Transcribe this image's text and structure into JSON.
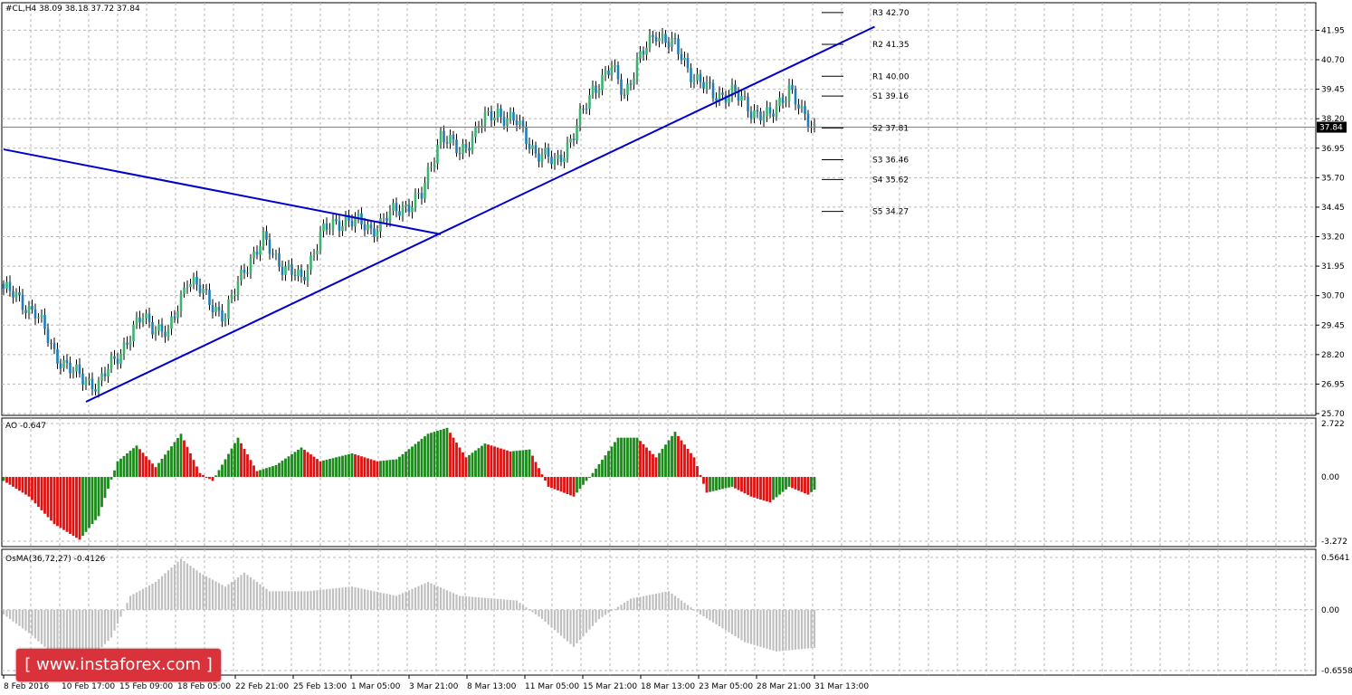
{
  "colors": {
    "up_candle": "#3cb371",
    "down_candle": "#1e7fb8",
    "trendline": "#0000cc",
    "ao_up": "#1a8a1a",
    "ao_down": "#e01010",
    "osma": "#c0c0c0",
    "grid": "#b8b8b8"
  },
  "watermark": {
    "text": "[ www.instaforex.com ]"
  },
  "chart_data": [
    {
      "type": "candlestick",
      "title": "#CL,H4  38.09 38.18 37.72 37.84",
      "current_price": "37.84",
      "ylim": [
        25.7,
        42.58
      ],
      "y_ticks": [
        "41.95",
        "40.70",
        "39.45",
        "38.20",
        "36.95",
        "35.70",
        "34.45",
        "33.20",
        "31.95",
        "30.70",
        "29.45",
        "28.20",
        "26.95",
        "25.70"
      ],
      "x_ticks": [
        "8 Feb 2016",
        "10 Feb 17:00",
        "15 Feb 09:00",
        "18 Feb 05:00",
        "22 Feb 21:00",
        "25 Feb 13:00",
        "1 Mar 05:00",
        "3 Mar 21:00",
        "8 Mar 13:00",
        "11 Mar 05:00",
        "15 Mar 21:00",
        "18 Mar 13:00",
        "23 Mar 05:00",
        "28 Mar 21:00",
        "31 Mar 13:00"
      ],
      "close_path": [
        [
          0,
          31.0
        ],
        [
          10,
          30.0
        ],
        [
          16,
          28.3
        ],
        [
          22,
          27.4
        ],
        [
          30,
          26.9
        ],
        [
          36,
          28.2
        ],
        [
          44,
          29.8
        ],
        [
          52,
          29.0
        ],
        [
          58,
          31.5
        ],
        [
          64,
          30.6
        ],
        [
          70,
          29.8
        ],
        [
          76,
          31.9
        ],
        [
          82,
          33.0
        ],
        [
          88,
          32.0
        ],
        [
          94,
          31.3
        ],
        [
          100,
          33.3
        ],
        [
          108,
          34.0
        ],
        [
          116,
          33.5
        ],
        [
          124,
          34.3
        ],
        [
          132,
          34.9
        ],
        [
          138,
          37.6
        ],
        [
          144,
          36.7
        ],
        [
          150,
          37.9
        ],
        [
          156,
          38.5
        ],
        [
          162,
          38.0
        ],
        [
          168,
          36.8
        ],
        [
          174,
          36.3
        ],
        [
          180,
          37.5
        ],
        [
          186,
          39.5
        ],
        [
          192,
          40.3
        ],
        [
          196,
          39.3
        ],
        [
          200,
          40.5
        ],
        [
          206,
          41.9
        ],
        [
          212,
          41.2
        ],
        [
          218,
          40.0
        ],
        [
          224,
          39.2
        ],
        [
          230,
          39.3
        ],
        [
          236,
          38.6
        ],
        [
          242,
          38.2
        ],
        [
          248,
          39.6
        ],
        [
          252,
          38.3
        ],
        [
          256,
          37.84
        ]
      ],
      "pivots": [
        {
          "label": "R3 42.70",
          "value": 42.7
        },
        {
          "label": "R2 41.35",
          "value": 41.35
        },
        {
          "label": "R1 40.00",
          "value": 40.0
        },
        {
          "label": "S1 39.16",
          "value": 39.16
        },
        {
          "label": "S2 37.81",
          "value": 37.81
        },
        {
          "label": "S3 36.46",
          "value": 36.46
        },
        {
          "label": "S4 35.62",
          "value": 35.62
        },
        {
          "label": "S5 34.27",
          "value": 34.27
        }
      ],
      "trendlines": [
        {
          "name": "resistance",
          "from": [
            0,
            36.9
          ],
          "to": [
            138,
            33.3
          ]
        },
        {
          "name": "support",
          "from": [
            26,
            26.2
          ],
          "to": [
            275,
            42.1
          ]
        }
      ]
    },
    {
      "type": "histogram",
      "title": "AO -0.647",
      "ylim": [
        -3.272,
        2.722
      ],
      "y_ticks": [
        "2.722",
        "0.00",
        "-3.272"
      ],
      "ao_path": [
        [
          0,
          -0.2
        ],
        [
          8,
          -1.0
        ],
        [
          16,
          -2.4
        ],
        [
          24,
          -3.2
        ],
        [
          30,
          -2.0
        ],
        [
          36,
          0.8
        ],
        [
          42,
          1.6
        ],
        [
          48,
          0.5
        ],
        [
          56,
          2.2
        ],
        [
          62,
          0.2
        ],
        [
          66,
          -0.2
        ],
        [
          74,
          2.0
        ],
        [
          80,
          0.3
        ],
        [
          86,
          0.6
        ],
        [
          94,
          1.5
        ],
        [
          100,
          0.8
        ],
        [
          110,
          1.2
        ],
        [
          118,
          0.8
        ],
        [
          124,
          0.9
        ],
        [
          134,
          2.2
        ],
        [
          140,
          2.5
        ],
        [
          146,
          1.0
        ],
        [
          152,
          1.7
        ],
        [
          160,
          1.3
        ],
        [
          166,
          1.4
        ],
        [
          172,
          -0.5
        ],
        [
          180,
          -1.0
        ],
        [
          186,
          0.2
        ],
        [
          194,
          2.0
        ],
        [
          200,
          2.0
        ],
        [
          206,
          1.0
        ],
        [
          212,
          2.3
        ],
        [
          218,
          1.0
        ],
        [
          222,
          -0.8
        ],
        [
          230,
          -0.5
        ],
        [
          236,
          -1.0
        ],
        [
          242,
          -1.3
        ],
        [
          248,
          -0.5
        ],
        [
          254,
          -0.9
        ],
        [
          256,
          -0.647
        ]
      ]
    },
    {
      "type": "histogram",
      "title": "OsMA(36,72,27) -0.4126",
      "ylim": [
        -0.6558,
        0.5641
      ],
      "y_ticks": [
        "0.5641",
        "0.00",
        "-0.6558"
      ],
      "osma_path": [
        [
          0,
          -0.05
        ],
        [
          8,
          -0.25
        ],
        [
          18,
          -0.55
        ],
        [
          26,
          -0.58
        ],
        [
          34,
          -0.3
        ],
        [
          40,
          0.15
        ],
        [
          48,
          0.3
        ],
        [
          56,
          0.55
        ],
        [
          62,
          0.4
        ],
        [
          70,
          0.25
        ],
        [
          76,
          0.4
        ],
        [
          84,
          0.2
        ],
        [
          96,
          0.2
        ],
        [
          110,
          0.25
        ],
        [
          124,
          0.15
        ],
        [
          134,
          0.3
        ],
        [
          144,
          0.15
        ],
        [
          162,
          0.1
        ],
        [
          170,
          -0.1
        ],
        [
          180,
          -0.4
        ],
        [
          188,
          -0.1
        ],
        [
          198,
          0.12
        ],
        [
          210,
          0.2
        ],
        [
          220,
          -0.05
        ],
        [
          234,
          -0.35
        ],
        [
          244,
          -0.45
        ],
        [
          256,
          -0.41
        ]
      ]
    }
  ]
}
